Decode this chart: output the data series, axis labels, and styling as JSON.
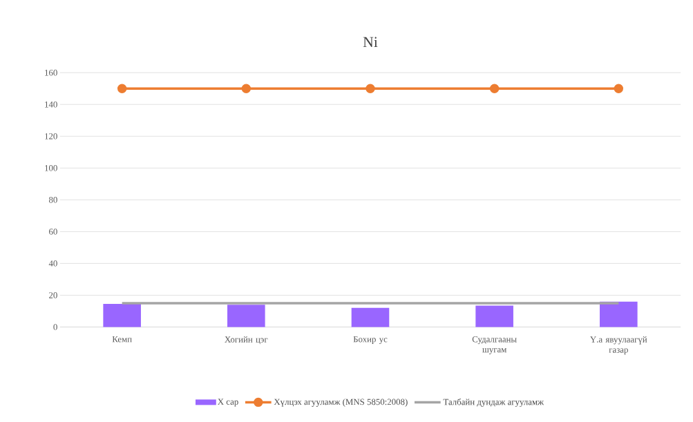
{
  "chart_data": {
    "type": "bar",
    "title": "Ni",
    "categories": [
      "Кемп",
      "Хогийн цэг",
      "Бохир ус",
      "Судалгааны шугам",
      "Ү.а явуулаагүй газар"
    ],
    "series": [
      {
        "name": "Х сар",
        "color": "#9966ff",
        "values": [
          14.5,
          14,
          12,
          13.5,
          16
        ]
      },
      {
        "name": "Хүлцэх агууламж (MNS 5850:2008)",
        "type": "line",
        "color": "#ed7d31",
        "marker": "circle",
        "values": [
          150,
          150,
          150,
          150,
          150
        ]
      },
      {
        "name": "Талбайн дундаж агууламж",
        "type": "line",
        "color": "#a5a5a5",
        "marker": "none",
        "values": [
          15,
          15,
          15,
          15,
          15
        ]
      }
    ],
    "ylim": [
      0,
      160
    ],
    "yticks": [
      0,
      20,
      40,
      60,
      80,
      100,
      120,
      140,
      160
    ],
    "grid": "y",
    "legend": "bottom"
  }
}
